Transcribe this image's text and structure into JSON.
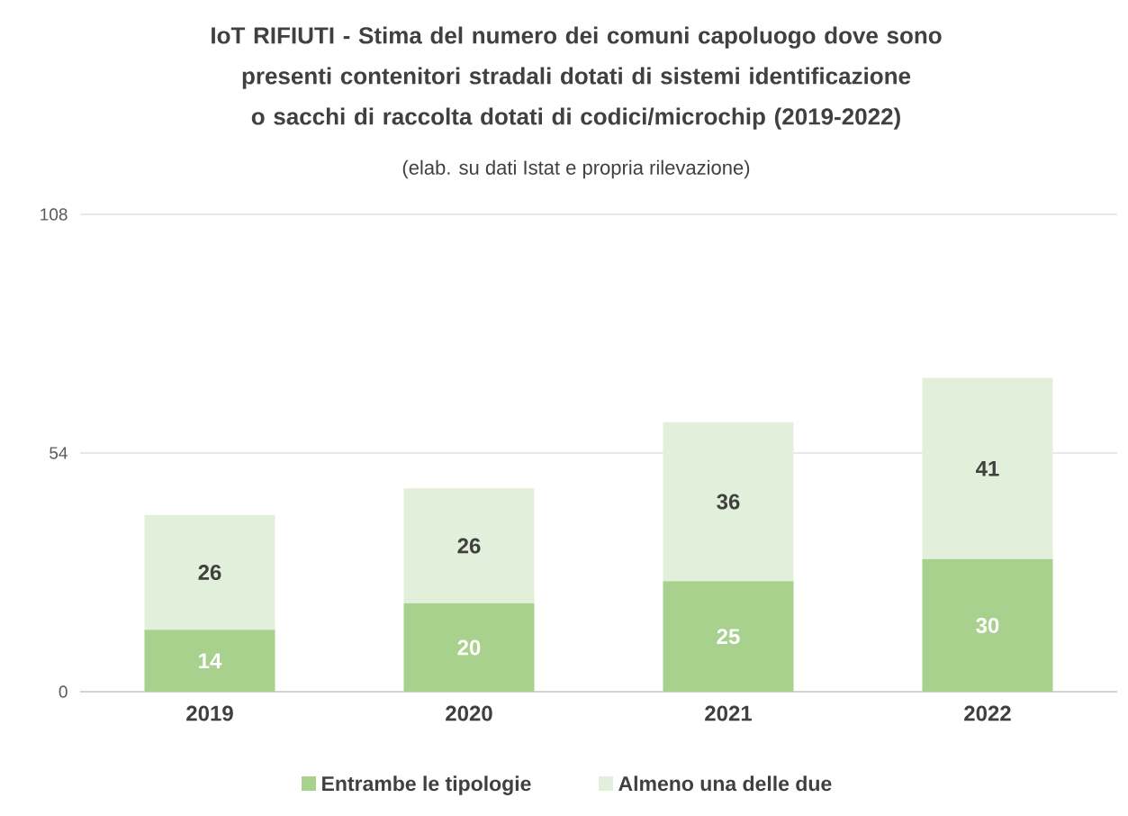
{
  "chart_data": {
    "type": "bar",
    "stacked": true,
    "title": "IoT RIFIUTI - Stima del numero dei comuni capoluogo dove sono presenti contenitori stradali dotati di sistemi identificazione o sacchi di raccolta dotati di codici/microchip (2019-2022)",
    "subtitle": "(elab. su dati Istat e propria rilevazione)",
    "categories": [
      "2019",
      "2020",
      "2021",
      "2022"
    ],
    "series": [
      {
        "name": "Entrambe le tipologie",
        "color": "#a9d18e",
        "values": [
          14,
          20,
          25,
          30
        ]
      },
      {
        "name": "Almeno una delle due",
        "color": "#e2efda",
        "values": [
          26,
          26,
          36,
          41
        ]
      }
    ],
    "ylim": [
      0,
      108
    ],
    "yticks": [
      0,
      54,
      108
    ],
    "grid": "y",
    "legend": "bottom",
    "data_labels": true
  }
}
